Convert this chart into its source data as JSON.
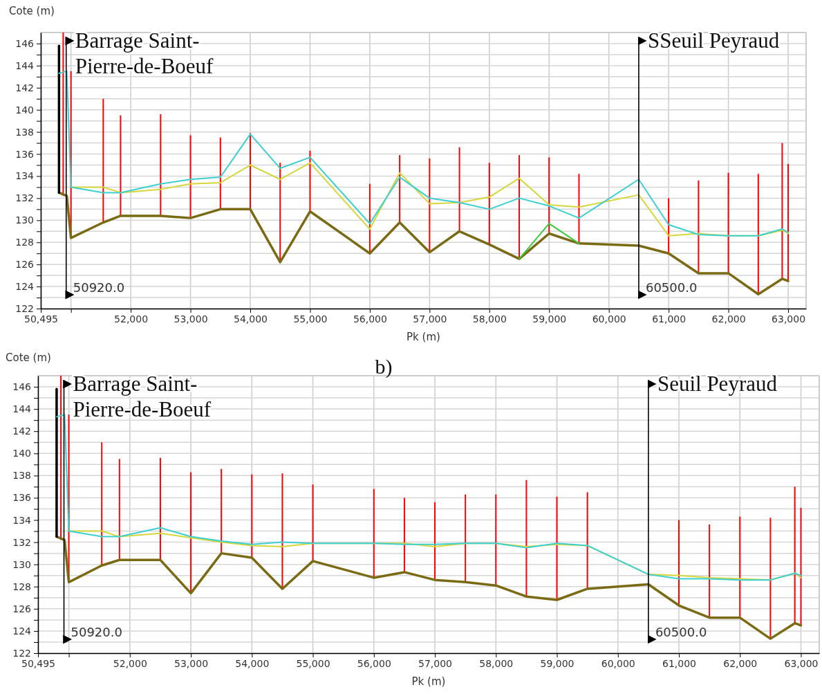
{
  "chart_data": [
    {
      "type": "line",
      "xlabel": "Pk (m)",
      "ylabel": "Cote (m)",
      "x": [
        50800,
        50930,
        51000,
        51540,
        51830,
        52500,
        53000,
        53500,
        54000,
        54500,
        55000,
        56000,
        56500,
        57000,
        57500,
        58000,
        58500,
        59000,
        59500,
        60500,
        61000,
        61500,
        62000,
        62500,
        62900,
        63000
      ],
      "series": [
        {
          "type": "bar",
          "color": "#ff0000",
          "x": [
            50870,
            51000,
            51540,
            51830,
            52500,
            53000,
            53500,
            54000,
            54500,
            55000,
            56000,
            56500,
            57000,
            57500,
            58000,
            58500,
            59000,
            59500,
            61000,
            61500,
            62000,
            62500,
            62900,
            63000
          ],
          "base": [
            132.2,
            128.4,
            129.8,
            130.4,
            130.4,
            130.2,
            131.0,
            131.0,
            126.2,
            130.8,
            127.0,
            129.8,
            127.1,
            129.0,
            127.8,
            126.5,
            128.8,
            127.9,
            127.0,
            125.2,
            125.2,
            123.3,
            124.7,
            124.5
          ],
          "values": [
            14.8,
            15.1,
            11.2,
            9.1,
            9.2,
            7.5,
            6.5,
            6.9,
            9.0,
            5.5,
            6.3,
            6.1,
            8.5,
            7.6,
            7.4,
            9.4,
            6.9,
            6.3,
            5.0,
            8.4,
            9.1,
            10.9,
            12.3,
            10.6
          ]
        },
        {
          "color": "#7a6a14",
          "values": [
            132.5,
            132.2,
            128.4,
            129.8,
            130.4,
            130.4,
            130.2,
            131.0,
            131.0,
            126.2,
            130.8,
            127.0,
            129.8,
            127.1,
            129.0,
            127.8,
            126.5,
            128.8,
            127.9,
            127.7,
            127.0,
            125.2,
            125.2,
            123.3,
            124.7,
            124.5
          ]
        },
        {
          "color": "#000000",
          "x": [
            50800,
            50800
          ],
          "values": [
            132.5,
            145.8
          ]
        },
        {
          "color": "#3cc83c",
          "values": [
            null,
            null,
            null,
            null,
            null,
            null,
            null,
            null,
            null,
            null,
            null,
            null,
            null,
            null,
            null,
            null,
            126.5,
            129.7,
            127.9,
            null,
            null,
            null,
            null,
            null,
            null,
            null
          ]
        },
        {
          "color": "#d6d63c",
          "values": [
            null,
            null,
            133.0,
            133.0,
            132.5,
            132.8,
            133.3,
            133.4,
            135.0,
            133.7,
            135.2,
            129.2,
            134.3,
            131.5,
            131.6,
            132.1,
            133.8,
            131.4,
            131.2,
            132.3,
            128.6,
            128.8,
            128.6,
            128.6,
            129.1,
            128.8
          ]
        },
        {
          "color": "#3ccfd0",
          "values": [
            143.3,
            143.5,
            133.0,
            132.5,
            132.5,
            133.3,
            133.7,
            133.9,
            137.8,
            134.7,
            135.7,
            129.7,
            133.9,
            132.0,
            131.6,
            131.0,
            132.0,
            131.3,
            130.2,
            133.7,
            129.6,
            128.7,
            128.6,
            128.6,
            129.2,
            128.9
          ]
        }
      ],
      "xlim": [
        50495,
        63300
      ],
      "ylim": [
        122,
        147
      ],
      "xticks": [
        {
          "value": 50495,
          "label": "50,495"
        },
        {
          "value": 51000,
          "label": null
        },
        {
          "value": 52000,
          "label": "52,000"
        },
        {
          "value": 53000,
          "label": "53,000"
        },
        {
          "value": 54000,
          "label": "54,000"
        },
        {
          "value": 55000,
          "label": "55,000"
        },
        {
          "value": 56000,
          "label": "56,000"
        },
        {
          "value": 57000,
          "label": "57,000"
        },
        {
          "value": 58000,
          "label": "58,000"
        },
        {
          "value": 59000,
          "label": "59,000"
        },
        {
          "value": 60000,
          "label": "60,000"
        },
        {
          "value": 61000,
          "label": "61,000"
        },
        {
          "value": 62000,
          "label": "62,000"
        },
        {
          "value": 63000,
          "label": "63,000"
        }
      ],
      "yticks": [
        122,
        {
          "value": 123,
          "label": null
        },
        124,
        {
          "value": 125,
          "label": null
        },
        126,
        {
          "value": 127,
          "label": null
        },
        128,
        {
          "value": 129,
          "label": null
        },
        130,
        {
          "value": 131,
          "label": null
        },
        132,
        {
          "value": 133,
          "label": null
        },
        134,
        {
          "value": 135,
          "label": null
        },
        136,
        {
          "value": 137,
          "label": null
        },
        138,
        {
          "value": 139,
          "label": null
        },
        140,
        {
          "value": 141,
          "label": null
        },
        142,
        {
          "value": 143,
          "label": null
        },
        144,
        {
          "value": 145,
          "label": null
        },
        146
      ],
      "grid": true,
      "ref_lines": [
        {
          "axis": "x",
          "value": 50920,
          "label": "50920.0",
          "color": "#000000"
        },
        {
          "axis": "x",
          "value": 60500,
          "label": "60500.0",
          "color": "#000000"
        }
      ],
      "annotations": [
        "Barrage Saint-Pierre-de-Boeuf",
        "SSeuil Peyraud"
      ]
    },
    {
      "type": "line",
      "title": "b)",
      "xlabel": "Pk (m)",
      "ylabel": "Cote (m)",
      "x": [
        50800,
        50930,
        51000,
        51540,
        51830,
        52500,
        53000,
        53500,
        54000,
        54500,
        55000,
        56000,
        56500,
        57000,
        57500,
        58000,
        58500,
        59000,
        59500,
        60500,
        61000,
        61500,
        62000,
        62500,
        62900,
        63000
      ],
      "series": [
        {
          "type": "bar",
          "color": "#ff0000",
          "x": [
            50870,
            51000,
            51540,
            51830,
            52500,
            53000,
            53500,
            54000,
            54500,
            55000,
            56000,
            56500,
            57000,
            57500,
            58000,
            58500,
            59000,
            59500,
            61000,
            61500,
            62000,
            62500,
            62900,
            63000
          ],
          "base": [
            132.2,
            128.4,
            129.9,
            130.4,
            130.4,
            127.4,
            131.0,
            130.6,
            127.8,
            130.3,
            128.8,
            129.3,
            128.6,
            128.4,
            128.1,
            127.1,
            126.8,
            127.8,
            126.3,
            125.2,
            125.2,
            123.3,
            124.7,
            124.5
          ],
          "values": [
            14.8,
            15.1,
            11.1,
            9.1,
            9.2,
            10.9,
            7.6,
            7.5,
            10.4,
            6.9,
            8.0,
            6.7,
            7.0,
            7.9,
            8.2,
            10.5,
            9.3,
            8.7,
            7.7,
            8.4,
            9.1,
            10.9,
            12.3,
            10.6
          ]
        },
        {
          "color": "#7a6a14",
          "values": [
            132.5,
            132.2,
            128.4,
            129.9,
            130.4,
            130.4,
            127.4,
            131.0,
            130.6,
            127.8,
            130.3,
            128.8,
            129.3,
            128.6,
            128.4,
            128.1,
            127.1,
            126.8,
            127.8,
            128.2,
            126.3,
            125.2,
            125.2,
            123.3,
            124.7,
            124.5
          ]
        },
        {
          "color": "#000000",
          "x": [
            50800,
            50800
          ],
          "values": [
            132.5,
            145.8
          ]
        },
        {
          "color": "#d6d63c",
          "values": [
            null,
            null,
            133.0,
            133.0,
            132.5,
            132.8,
            132.4,
            132.0,
            131.7,
            131.6,
            131.9,
            131.9,
            131.9,
            131.6,
            131.9,
            131.9,
            131.6,
            131.8,
            131.7,
            129.1,
            129.0,
            128.8,
            128.7,
            128.6,
            129.2,
            128.8
          ]
        },
        {
          "color": "#3ccfd0",
          "values": [
            143.3,
            143.5,
            133.0,
            132.5,
            132.5,
            133.3,
            132.5,
            132.1,
            131.8,
            132.0,
            131.9,
            131.9,
            131.8,
            131.8,
            131.9,
            131.9,
            131.5,
            131.9,
            131.7,
            129.1,
            128.7,
            128.7,
            128.6,
            128.6,
            129.2,
            129.0
          ]
        }
      ],
      "xlim": [
        50495,
        63300
      ],
      "ylim": [
        122,
        147
      ],
      "xticks": [
        {
          "value": 50495,
          "label": "50,495"
        },
        {
          "value": 51000,
          "label": null
        },
        {
          "value": 52000,
          "label": "52,000"
        },
        {
          "value": 53000,
          "label": "53,000"
        },
        {
          "value": 54000,
          "label": "54,000"
        },
        {
          "value": 55000,
          "label": "55,000"
        },
        {
          "value": 56000,
          "label": "56,000"
        },
        {
          "value": 57000,
          "label": "57,000"
        },
        {
          "value": 58000,
          "label": "58,000"
        },
        {
          "value": 59000,
          "label": "59,000"
        },
        {
          "value": 60000,
          "label": "60,000"
        },
        {
          "value": 61000,
          "label": "61,000"
        },
        {
          "value": 62000,
          "label": "62,000"
        },
        {
          "value": 63000,
          "label": "63,000"
        }
      ],
      "yticks": [
        122,
        {
          "value": 123,
          "label": null
        },
        124,
        {
          "value": 125,
          "label": null
        },
        126,
        {
          "value": 127,
          "label": null
        },
        128,
        {
          "value": 129,
          "label": null
        },
        130,
        {
          "value": 131,
          "label": null
        },
        132,
        {
          "value": 133,
          "label": null
        },
        134,
        {
          "value": 135,
          "label": null
        },
        136,
        {
          "value": 137,
          "label": null
        },
        138,
        {
          "value": 139,
          "label": null
        },
        140,
        {
          "value": 141,
          "label": null
        },
        142,
        {
          "value": 143,
          "label": null
        },
        144,
        {
          "value": 145,
          "label": null
        },
        146
      ],
      "grid": true,
      "ref_lines": [
        {
          "axis": "x",
          "value": 50920,
          "label": "50920.0",
          "color": "#000000"
        },
        {
          "axis": "x",
          "value": 60500,
          "label": "60500.0",
          "color": "#000000"
        }
      ],
      "annotations": [
        "Barrage Saint-Pierre-de-Boeuf",
        "Seuil Peyraud"
      ]
    }
  ]
}
